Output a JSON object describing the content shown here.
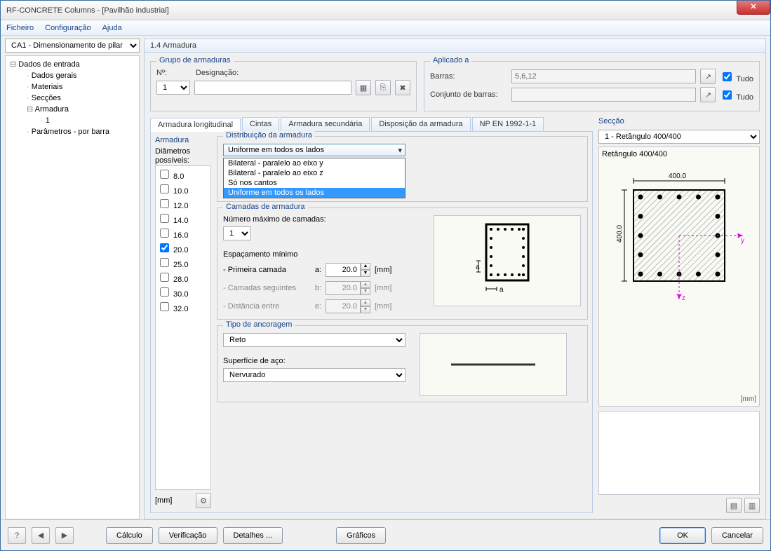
{
  "window": {
    "title": "RF-CONCRETE Columns - [Pavilhão industrial]"
  },
  "menu": {
    "file": "Ficheiro",
    "config": "Configuração",
    "help": "Ajuda"
  },
  "leftSelect": "CA1 - Dimensionamento de pilar",
  "tree": {
    "root": "Dados de entrada",
    "items": [
      "Dados gerais",
      "Materiais",
      "Secções"
    ],
    "armadura": "Armadura",
    "armadura_child": "1",
    "params": "Parâmetros - por barra"
  },
  "panelTitle": "1.4 Armadura",
  "grupo": {
    "title": "Grupo de armaduras",
    "no_label": "Nº:",
    "no_value": "1",
    "desig_label": "Designação:",
    "desig_value": ""
  },
  "aplicado": {
    "title": "Aplicado a",
    "barras_label": "Barras:",
    "barras_value": "5,6,12",
    "conjunto_label": "Conjunto de barras:",
    "conjunto_value": "",
    "tudo": "Tudo"
  },
  "tabs": [
    "Armadura longitudinal",
    "Cintas",
    "Armadura secundária",
    "Disposição da armadura",
    "NP EN 1992-1-1"
  ],
  "armadura": {
    "title": "Armadura",
    "diam_label": "Diâmetros possíveis:",
    "diameters": [
      {
        "v": "8.0",
        "c": false
      },
      {
        "v": "10.0",
        "c": false
      },
      {
        "v": "12.0",
        "c": false
      },
      {
        "v": "14.0",
        "c": false
      },
      {
        "v": "16.0",
        "c": false
      },
      {
        "v": "20.0",
        "c": true
      },
      {
        "v": "25.0",
        "c": false
      },
      {
        "v": "28.0",
        "c": false
      },
      {
        "v": "30.0",
        "c": false
      },
      {
        "v": "32.0",
        "c": false
      }
    ],
    "unit": "[mm]"
  },
  "distrib": {
    "title": "Distribuição da armadura",
    "selected": "Uniforme em todos os lados",
    "options": [
      "Bilateral - paralelo ao eixo y",
      "Bilateral - paralelo ao eixo z",
      "Só nos cantos",
      "Uniforme em todos os lados"
    ]
  },
  "camadas": {
    "title": "Camadas de armadura",
    "num_label": "Número máximo de camadas:",
    "num_value": "1",
    "espac_title": "Espaçamento mínimo",
    "rows": [
      {
        "lbl": "- Primeira camada",
        "col": "a:",
        "val": "20.0",
        "unit": "[mm]",
        "enabled": true
      },
      {
        "lbl": "- Camadas seguintes",
        "col": "b:",
        "val": "20.0",
        "unit": "[mm]",
        "enabled": false
      },
      {
        "lbl": "- Distância entre",
        "col": "e:",
        "val": "20.0",
        "unit": "[mm]",
        "enabled": false
      }
    ]
  },
  "ancoragem": {
    "title": "Tipo de ancoragem",
    "value": "Reto",
    "superficie_label": "Superfície de aço:",
    "superficie_value": "Nervurado"
  },
  "seccao": {
    "title": "Secção",
    "select": "1 - Retângulo 400/400",
    "caption": "Retângulo 400/400",
    "width": "400.0",
    "height": "400.0",
    "unit": "[mm]",
    "rebars_per_side": 5,
    "accent_color": "#e000e0"
  },
  "footer": {
    "calculo": "Cálculo",
    "verificacao": "Verificação",
    "detalhes": "Detalhes ...",
    "graficos": "Gráficos",
    "ok": "OK",
    "cancelar": "Cancelar"
  }
}
